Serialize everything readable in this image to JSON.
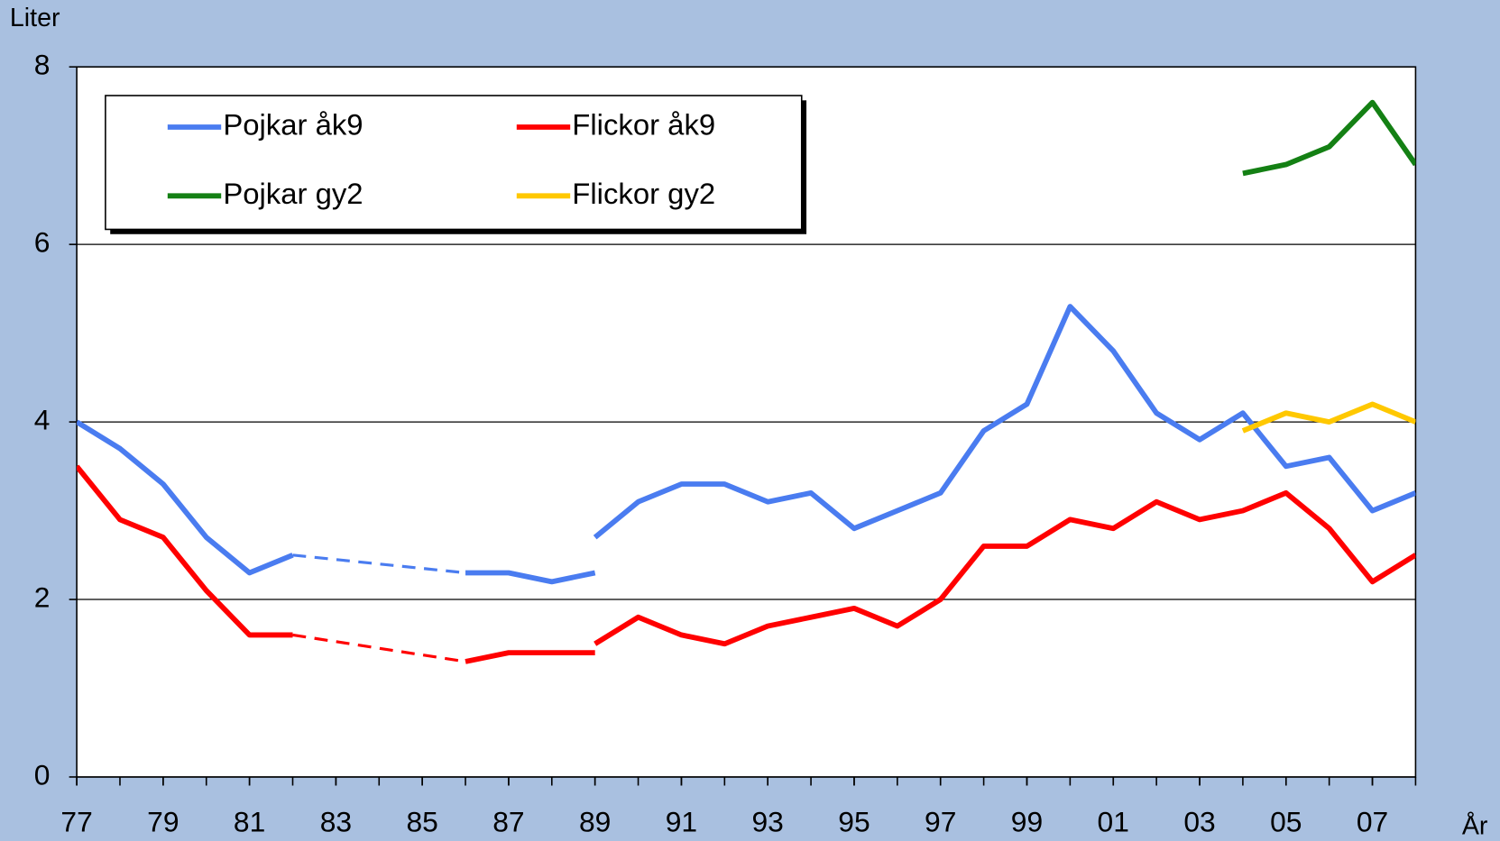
{
  "chart_data": {
    "type": "line",
    "y_axis_label": "Liter",
    "x_axis_label": "År",
    "ylim": [
      0,
      8
    ],
    "yticks": [
      0,
      2,
      4,
      6,
      8
    ],
    "xlim": [
      1977,
      2008
    ],
    "xticks": [
      {
        "value": 1977,
        "label": "77"
      },
      {
        "value": 1979,
        "label": "79"
      },
      {
        "value": 1981,
        "label": "81"
      },
      {
        "value": 1983,
        "label": "83"
      },
      {
        "value": 1985,
        "label": "85"
      },
      {
        "value": 1987,
        "label": "87"
      },
      {
        "value": 1989,
        "label": "89"
      },
      {
        "value": 1991,
        "label": "91"
      },
      {
        "value": 1993,
        "label": "93"
      },
      {
        "value": 1995,
        "label": "95"
      },
      {
        "value": 1997,
        "label": "97"
      },
      {
        "value": 1999,
        "label": "99"
      },
      {
        "value": 2001,
        "label": "01"
      },
      {
        "value": 2003,
        "label": "03"
      },
      {
        "value": 2005,
        "label": "05"
      },
      {
        "value": 2007,
        "label": "07"
      }
    ],
    "grid": true,
    "gap_line": "dashed",
    "legend": "upper left",
    "series": [
      {
        "name": "Pojkar åk9",
        "color": "#4a7cf0",
        "x": [
          1977,
          1978,
          1979,
          1980,
          1981,
          1982,
          1983,
          1984,
          1985,
          1986,
          1987,
          1988,
          1989,
          1989,
          1989,
          1990,
          1991,
          1992,
          1993,
          1994,
          1995,
          1996,
          1997,
          1998,
          1999,
          2000,
          2001,
          2002,
          2003,
          2004,
          2005,
          2006,
          2007,
          2008
        ],
        "values": [
          4.0,
          3.7,
          3.3,
          2.7,
          2.3,
          2.5,
          null,
          null,
          null,
          2.3,
          2.3,
          2.2,
          2.3,
          null,
          2.7,
          3.1,
          3.3,
          3.3,
          3.1,
          3.2,
          2.8,
          3.0,
          3.2,
          3.9,
          4.2,
          5.3,
          4.8,
          4.1,
          3.8,
          4.1,
          3.5,
          3.6,
          3.0,
          3.2
        ]
      },
      {
        "name": "Flickor åk9",
        "color": "#ff0000",
        "x": [
          1977,
          1978,
          1979,
          1980,
          1981,
          1982,
          1983,
          1984,
          1985,
          1986,
          1987,
          1988,
          1989,
          1989,
          1989,
          1990,
          1991,
          1992,
          1993,
          1994,
          1995,
          1996,
          1997,
          1998,
          1999,
          2000,
          2001,
          2002,
          2003,
          2004,
          2005,
          2006,
          2007,
          2008
        ],
        "values": [
          3.5,
          2.9,
          2.7,
          2.1,
          1.6,
          1.6,
          null,
          null,
          null,
          1.3,
          1.4,
          1.4,
          1.4,
          null,
          1.5,
          1.8,
          1.6,
          1.5,
          1.7,
          1.8,
          1.9,
          1.7,
          2.0,
          2.6,
          2.6,
          2.9,
          2.8,
          3.1,
          2.9,
          3.0,
          3.2,
          2.8,
          2.2,
          2.5
        ]
      },
      {
        "name": "Pojkar gy2",
        "color": "#148014",
        "x": [
          2004,
          2005,
          2006,
          2007,
          2008
        ],
        "values": [
          6.8,
          6.9,
          7.1,
          7.6,
          6.9
        ]
      },
      {
        "name": "Flickor gy2",
        "color": "#ffc800",
        "x": [
          2004,
          2005,
          2006,
          2007,
          2008
        ],
        "values": [
          3.9,
          4.1,
          4.0,
          4.2,
          4.0
        ]
      }
    ]
  }
}
